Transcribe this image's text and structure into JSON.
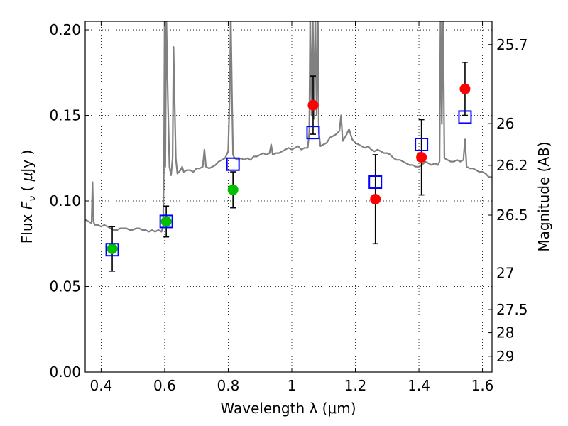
{
  "chart_data": {
    "type": "scatter",
    "title": "",
    "xlabel": "Wavelength  λ (μm)",
    "ylabel_parts": [
      "Flux  ",
      "F",
      "ν",
      "  ( ",
      "μ",
      "Jy )"
    ],
    "y2label": "Magnitude (AB)",
    "xlim": [
      0.35,
      1.63
    ],
    "ylim": [
      0.0,
      0.205
    ],
    "x_ticks": [
      0.4,
      0.6,
      0.8,
      1.0,
      1.2,
      1.4,
      1.6
    ],
    "x_tick_labels": [
      "0.4",
      "0.6",
      "0.8",
      "1",
      "1.2",
      "1.4",
      "1.6"
    ],
    "y_ticks": [
      0.0,
      0.05,
      0.1,
      0.15,
      0.2
    ],
    "y_tick_labels": [
      "0.00",
      "0.05",
      "0.10",
      "0.15",
      "0.20"
    ],
    "y2_ticks": [
      {
        "label": "25.7",
        "flux": 0.1914
      },
      {
        "label": "26",
        "flux": 0.1452
      },
      {
        "label": "26.2",
        "flux": 0.1208
      },
      {
        "label": "26.5",
        "flux": 0.0917
      },
      {
        "label": "27",
        "flux": 0.0579
      },
      {
        "label": "27.5",
        "flux": 0.0365
      },
      {
        "label": "28",
        "flux": 0.023
      },
      {
        "label": "29",
        "flux": 0.0092
      }
    ],
    "grid": true,
    "colors": {
      "spectrum": "#808080",
      "model": "#0000ff",
      "green": "#00c000",
      "red": "#ff0000",
      "errorbar": "#000000"
    },
    "spectrum": {
      "x": [
        0.35,
        0.36,
        0.37,
        0.373,
        0.376,
        0.38,
        0.39,
        0.4,
        0.41,
        0.42,
        0.43,
        0.44,
        0.45,
        0.46,
        0.47,
        0.48,
        0.49,
        0.5,
        0.51,
        0.52,
        0.53,
        0.54,
        0.55,
        0.56,
        0.57,
        0.58,
        0.59,
        0.595,
        0.598,
        0.6,
        0.602,
        0.605,
        0.607,
        0.61,
        0.615,
        0.62,
        0.625,
        0.628,
        0.63,
        0.635,
        0.64,
        0.65,
        0.655,
        0.66,
        0.67,
        0.68,
        0.69,
        0.7,
        0.71,
        0.72,
        0.725,
        0.73,
        0.74,
        0.75,
        0.76,
        0.77,
        0.78,
        0.79,
        0.8,
        0.805,
        0.808,
        0.812,
        0.815,
        0.82,
        0.83,
        0.84,
        0.85,
        0.86,
        0.87,
        0.88,
        0.89,
        0.9,
        0.91,
        0.92,
        0.93,
        0.935,
        0.94,
        0.95,
        0.96,
        0.97,
        0.98,
        0.99,
        1.0,
        1.01,
        1.02,
        1.03,
        1.04,
        1.05,
        1.055,
        1.058,
        1.062,
        1.066,
        1.07,
        1.074,
        1.078,
        1.082,
        1.085,
        1.09,
        1.1,
        1.11,
        1.12,
        1.13,
        1.14,
        1.15,
        1.155,
        1.16,
        1.17,
        1.18,
        1.19,
        1.2,
        1.21,
        1.22,
        1.23,
        1.24,
        1.25,
        1.26,
        1.27,
        1.28,
        1.29,
        1.3,
        1.31,
        1.32,
        1.33,
        1.34,
        1.35,
        1.36,
        1.37,
        1.38,
        1.39,
        1.4,
        1.41,
        1.42,
        1.43,
        1.44,
        1.45,
        1.46,
        1.465,
        1.468,
        1.472,
        1.476,
        1.48,
        1.49,
        1.5,
        1.51,
        1.52,
        1.53,
        1.54,
        1.545,
        1.55,
        1.56,
        1.57,
        1.58,
        1.59,
        1.6,
        1.61,
        1.62,
        1.63
      ],
      "y": [
        0.089,
        0.088,
        0.087,
        0.111,
        0.088,
        0.086,
        0.086,
        0.085,
        0.086,
        0.085,
        0.084,
        0.083,
        0.083,
        0.084,
        0.084,
        0.084,
        0.083,
        0.083,
        0.084,
        0.084,
        0.083,
        0.083,
        0.082,
        0.083,
        0.082,
        0.083,
        0.082,
        0.085,
        0.125,
        0.21,
        0.12,
        0.21,
        0.19,
        0.16,
        0.12,
        0.115,
        0.125,
        0.19,
        0.17,
        0.125,
        0.116,
        0.118,
        0.12,
        0.117,
        0.118,
        0.118,
        0.117,
        0.119,
        0.119,
        0.12,
        0.13,
        0.12,
        0.119,
        0.12,
        0.121,
        0.123,
        0.124,
        0.125,
        0.129,
        0.165,
        0.21,
        0.16,
        0.127,
        0.125,
        0.124,
        0.125,
        0.124,
        0.125,
        0.124,
        0.126,
        0.126,
        0.127,
        0.128,
        0.127,
        0.128,
        0.133,
        0.127,
        0.128,
        0.128,
        0.129,
        0.13,
        0.131,
        0.13,
        0.131,
        0.132,
        0.13,
        0.131,
        0.131,
        0.14,
        0.21,
        0.15,
        0.21,
        0.148,
        0.21,
        0.15,
        0.21,
        0.14,
        0.132,
        0.133,
        0.134,
        0.137,
        0.138,
        0.139,
        0.141,
        0.15,
        0.135,
        0.138,
        0.142,
        0.136,
        0.134,
        0.133,
        0.132,
        0.131,
        0.132,
        0.13,
        0.129,
        0.13,
        0.129,
        0.128,
        0.128,
        0.127,
        0.125,
        0.124,
        0.124,
        0.123,
        0.122,
        0.121,
        0.121,
        0.12,
        0.12,
        0.121,
        0.123,
        0.122,
        0.121,
        0.122,
        0.121,
        0.123,
        0.21,
        0.145,
        0.21,
        0.125,
        0.124,
        0.123,
        0.123,
        0.124,
        0.123,
        0.124,
        0.136,
        0.12,
        0.119,
        0.119,
        0.118,
        0.117,
        0.117,
        0.116,
        0.114,
        0.114
      ]
    },
    "model_points": {
      "x": [
        0.435,
        0.605,
        0.815,
        1.067,
        1.263,
        1.408,
        1.545
      ],
      "y": [
        0.0715,
        0.088,
        0.1215,
        0.14,
        0.111,
        0.133,
        0.149
      ]
    },
    "observed_green": {
      "x": [
        0.435,
        0.605,
        0.815
      ],
      "y": [
        0.072,
        0.088,
        0.1065
      ],
      "err": [
        0.013,
        0.009,
        0.0105
      ]
    },
    "observed_red": {
      "x": [
        1.067,
        1.263,
        1.408,
        1.545
      ],
      "y": [
        0.156,
        0.101,
        0.1255,
        0.1655
      ],
      "err": [
        0.017,
        0.026,
        0.022,
        0.0155
      ]
    }
  }
}
